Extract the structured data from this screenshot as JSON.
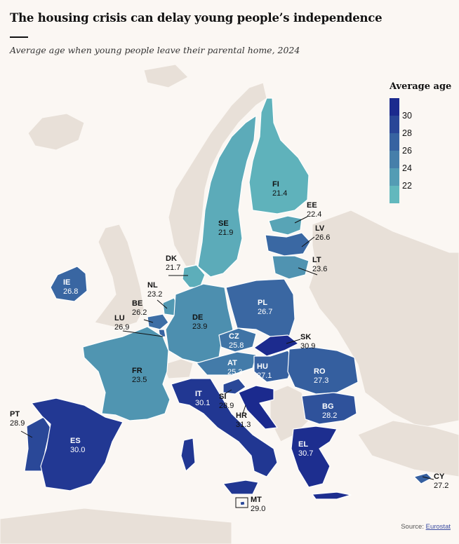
{
  "title": "The housing crisis can delay young people’s independence",
  "subtitle": "Average age when young people leave their parental home, 2024",
  "legend": {
    "title": "Average age",
    "ticks": [
      "30",
      "28",
      "26",
      "24",
      "22"
    ]
  },
  "source": {
    "prefix": "Source: ",
    "link": "Eurostat"
  },
  "colors": {
    "background": "#fbf7f3",
    "land_other": "#e8e0d8",
    "scale_low": "#62b8bd",
    "scale_high": "#1b2a8e"
  },
  "chart_data": {
    "type": "choropleth",
    "title": "The housing crisis can delay young people’s independence",
    "value_label": "Average age",
    "scale": [
      21,
      31
    ],
    "countries": [
      {
        "code": "FI",
        "value": 21.4
      },
      {
        "code": "SE",
        "value": 21.9
      },
      {
        "code": "DK",
        "value": 21.7
      },
      {
        "code": "EE",
        "value": 22.4
      },
      {
        "code": "LV",
        "value": 26.6
      },
      {
        "code": "LT",
        "value": 23.6
      },
      {
        "code": "IE",
        "value": 26.8
      },
      {
        "code": "NL",
        "value": 23.2
      },
      {
        "code": "BE",
        "value": 26.2
      },
      {
        "code": "LU",
        "value": 26.9
      },
      {
        "code": "DE",
        "value": 23.9
      },
      {
        "code": "PL",
        "value": 26.7
      },
      {
        "code": "CZ",
        "value": 25.8
      },
      {
        "code": "SK",
        "value": 30.9
      },
      {
        "code": "FR",
        "value": 23.5
      },
      {
        "code": "AT",
        "value": 25.3
      },
      {
        "code": "HU",
        "value": 27.1
      },
      {
        "code": "RO",
        "value": 27.3
      },
      {
        "code": "IT",
        "value": 30.1
      },
      {
        "code": "SI",
        "value": 28.9
      },
      {
        "code": "HR",
        "value": 31.3
      },
      {
        "code": "BG",
        "value": 28.2
      },
      {
        "code": "PT",
        "value": 28.9
      },
      {
        "code": "ES",
        "value": 30.0
      },
      {
        "code": "EL",
        "value": 30.7
      },
      {
        "code": "MT",
        "value": 29.0
      },
      {
        "code": "CY",
        "value": 27.2
      }
    ]
  }
}
